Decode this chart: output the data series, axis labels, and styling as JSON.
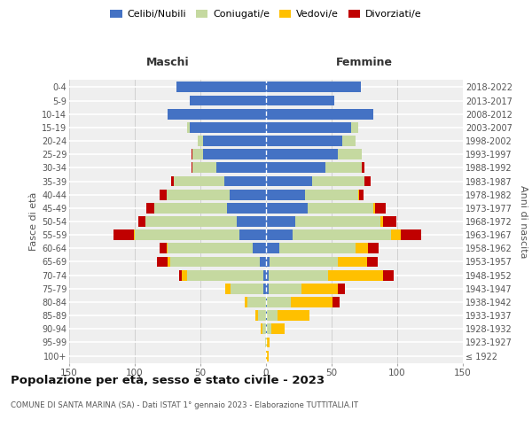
{
  "age_groups": [
    "100+",
    "95-99",
    "90-94",
    "85-89",
    "80-84",
    "75-79",
    "70-74",
    "65-69",
    "60-64",
    "55-59",
    "50-54",
    "45-49",
    "40-44",
    "35-39",
    "30-34",
    "25-29",
    "20-24",
    "15-19",
    "10-14",
    "5-9",
    "0-4"
  ],
  "birth_years": [
    "≤ 1922",
    "1923-1927",
    "1928-1932",
    "1933-1937",
    "1938-1942",
    "1943-1947",
    "1948-1952",
    "1953-1957",
    "1958-1962",
    "1963-1967",
    "1968-1972",
    "1973-1977",
    "1978-1982",
    "1983-1987",
    "1988-1992",
    "1993-1997",
    "1998-2002",
    "2003-2007",
    "2008-2012",
    "2013-2017",
    "2018-2022"
  ],
  "colors": {
    "celibi": "#4472c4",
    "coniugati": "#c5d9a0",
    "vedovi": "#ffc000",
    "divorziati": "#c00000"
  },
  "maschi": {
    "celibi": [
      0,
      0,
      0,
      0,
      0,
      2,
      2,
      5,
      10,
      20,
      22,
      30,
      28,
      32,
      38,
      48,
      48,
      58,
      75,
      58,
      68
    ],
    "coniugati": [
      0,
      1,
      3,
      6,
      14,
      25,
      58,
      68,
      65,
      80,
      70,
      55,
      48,
      38,
      18,
      8,
      4,
      2,
      0,
      0,
      0
    ],
    "vedovi": [
      0,
      0,
      1,
      2,
      2,
      4,
      4,
      2,
      1,
      1,
      0,
      0,
      0,
      0,
      0,
      0,
      0,
      0,
      0,
      0,
      0
    ],
    "divorziati": [
      0,
      0,
      0,
      0,
      0,
      0,
      2,
      8,
      5,
      15,
      5,
      6,
      5,
      2,
      1,
      1,
      0,
      0,
      0,
      0,
      0
    ]
  },
  "femmine": {
    "celibi": [
      0,
      0,
      1,
      1,
      1,
      2,
      2,
      3,
      10,
      20,
      22,
      32,
      30,
      35,
      45,
      55,
      58,
      65,
      82,
      52,
      72
    ],
    "coniugati": [
      0,
      1,
      3,
      8,
      18,
      25,
      45,
      52,
      58,
      75,
      65,
      50,
      40,
      40,
      28,
      18,
      10,
      5,
      0,
      0,
      0
    ],
    "vedovi": [
      2,
      2,
      10,
      24,
      32,
      28,
      42,
      22,
      10,
      8,
      2,
      1,
      1,
      0,
      0,
      0,
      0,
      0,
      0,
      0,
      0
    ],
    "divorziati": [
      0,
      0,
      0,
      0,
      5,
      5,
      8,
      8,
      8,
      15,
      10,
      8,
      3,
      5,
      2,
      0,
      0,
      0,
      0,
      0,
      0
    ]
  },
  "title": "Popolazione per età, sesso e stato civile - 2023",
  "subtitle": "COMUNE DI SANTA MARINA (SA) - Dati ISTAT 1° gennaio 2023 - Elaborazione TUTTITALIA.IT",
  "label_maschi": "Maschi",
  "label_femmine": "Femmine",
  "ylabel_left": "Fasce di età",
  "ylabel_right": "Anni di nascita",
  "xlim": 150,
  "legend_labels": [
    "Celibi/Nubili",
    "Coniugati/e",
    "Vedovi/e",
    "Divorziati/e"
  ],
  "bg_color": "#efefef",
  "grid_color_h": "#ffffff",
  "grid_color_v": "#cccccc"
}
